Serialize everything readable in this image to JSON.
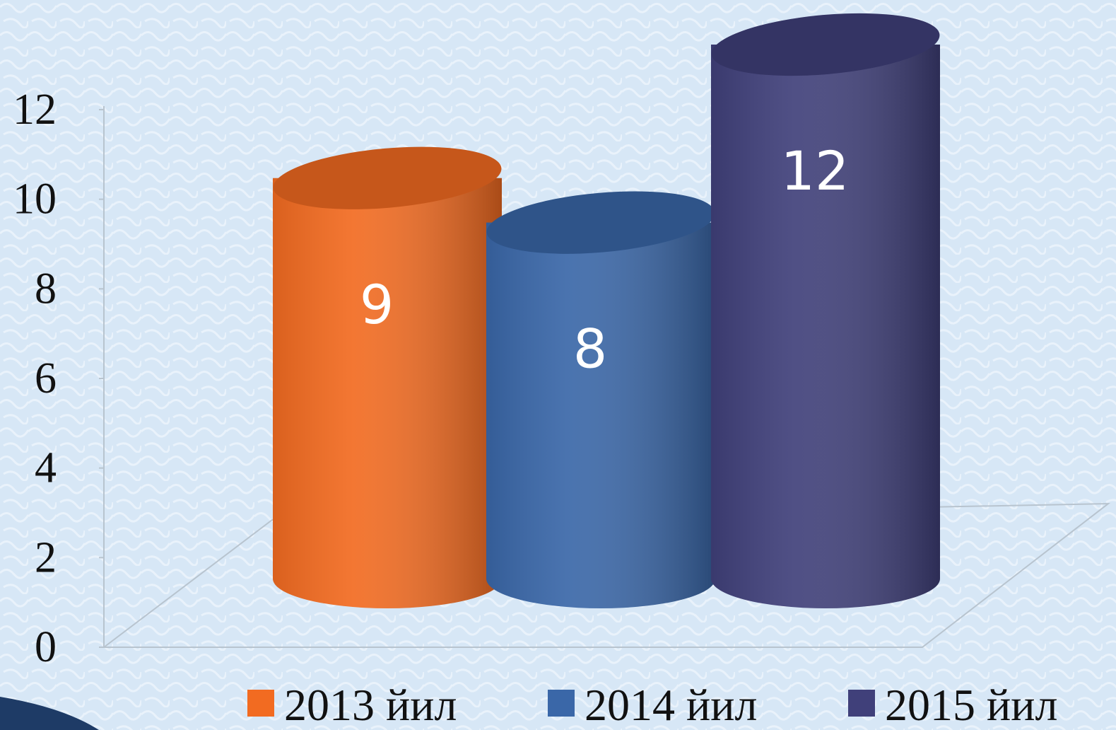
{
  "chart_data": {
    "type": "cylinder-bar",
    "series": [
      {
        "name": "2013 йил",
        "color": "#f26b21",
        "values": [
          9
        ]
      },
      {
        "name": "2014 йил",
        "color": "#3a67a8",
        "values": [
          8
        ]
      },
      {
        "name": "2015 йил",
        "color": "#40407a",
        "values": [
          12
        ]
      }
    ],
    "ylim": [
      0,
      12
    ],
    "yticks": [
      0,
      2,
      4,
      6,
      8,
      10,
      12
    ],
    "legend": "bottom"
  }
}
